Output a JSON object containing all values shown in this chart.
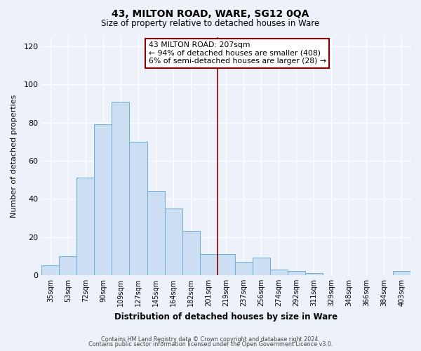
{
  "title": "43, MILTON ROAD, WARE, SG12 0QA",
  "subtitle": "Size of property relative to detached houses in Ware",
  "xlabel": "Distribution of detached houses by size in Ware",
  "ylabel": "Number of detached properties",
  "bar_labels": [
    "35sqm",
    "53sqm",
    "72sqm",
    "90sqm",
    "109sqm",
    "127sqm",
    "145sqm",
    "164sqm",
    "182sqm",
    "201sqm",
    "219sqm",
    "237sqm",
    "256sqm",
    "274sqm",
    "292sqm",
    "311sqm",
    "329sqm",
    "348sqm",
    "366sqm",
    "384sqm",
    "403sqm"
  ],
  "bar_heights": [
    5,
    10,
    51,
    79,
    91,
    70,
    44,
    35,
    23,
    11,
    11,
    7,
    9,
    3,
    2,
    1,
    0,
    0,
    0,
    0,
    2
  ],
  "bar_color": "#ccdff2",
  "bar_edge_color": "#6baed6",
  "ylim": [
    0,
    125
  ],
  "yticks": [
    0,
    20,
    40,
    60,
    80,
    100,
    120
  ],
  "property_line_x": 9.5,
  "property_line_color": "#8b0000",
  "annotation_title": "43 MILTON ROAD: 207sqm",
  "annotation_line1": "← 94% of detached houses are smaller (408)",
  "annotation_line2": "6% of semi-detached houses are larger (28) →",
  "footer1": "Contains HM Land Registry data © Crown copyright and database right 2024.",
  "footer2": "Contains public sector information licensed under the Open Government Licence v3.0.",
  "background_color": "#edf2fa",
  "plot_background": "#edf2fa",
  "grid_color": "#ffffff"
}
